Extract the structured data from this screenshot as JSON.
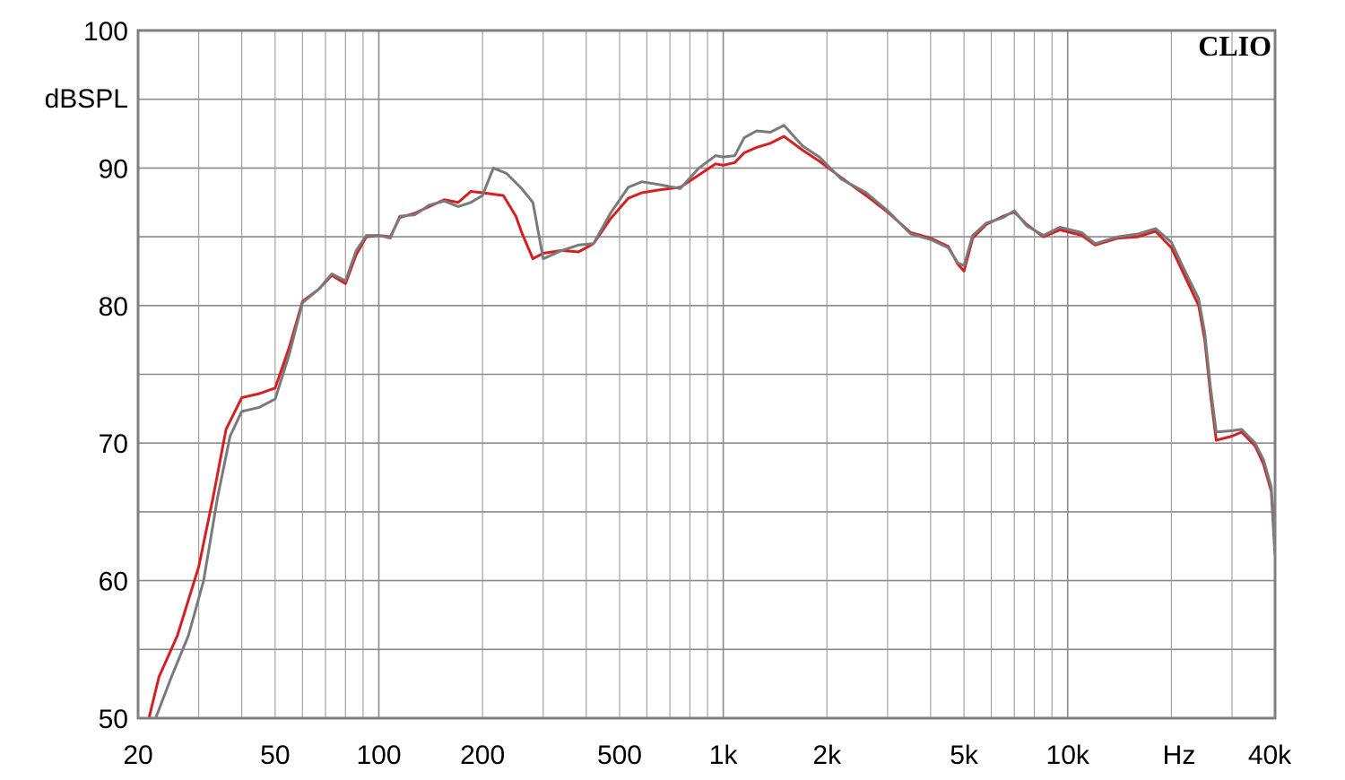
{
  "chart_data": {
    "type": "line",
    "title": "",
    "brand_label": "CLIO",
    "xlabel": "Hz",
    "ylabel": "dBSPL",
    "x_scale": "log",
    "xlim": [
      20,
      40000
    ],
    "ylim": [
      50,
      100
    ],
    "grid": true,
    "x_tick_labels": [
      {
        "value": 20,
        "label": "20"
      },
      {
        "value": 50,
        "label": "50"
      },
      {
        "value": 100,
        "label": "100"
      },
      {
        "value": 200,
        "label": "200"
      },
      {
        "value": 500,
        "label": "500"
      },
      {
        "value": 1000,
        "label": "1k"
      },
      {
        "value": 2000,
        "label": "2k"
      },
      {
        "value": 5000,
        "label": "5k"
      },
      {
        "value": 10000,
        "label": "10k"
      },
      {
        "value": 40000,
        "label": "40k"
      }
    ],
    "y_tick_labels": [
      {
        "value": 50,
        "label": "50"
      },
      {
        "value": 60,
        "label": "60"
      },
      {
        "value": 70,
        "label": "70"
      },
      {
        "value": 80,
        "label": "80"
      },
      {
        "value": 90,
        "label": "90"
      },
      {
        "value": 100,
        "label": "100"
      }
    ],
    "series": [
      {
        "color": "#d42020",
        "points": [
          [
            21.5,
            50
          ],
          [
            23,
            53
          ],
          [
            26,
            56
          ],
          [
            30,
            61
          ],
          [
            33,
            66
          ],
          [
            36,
            71
          ],
          [
            40,
            73.3
          ],
          [
            45,
            73.6
          ],
          [
            50,
            74
          ],
          [
            55,
            77
          ],
          [
            60,
            80.3
          ],
          [
            67,
            81.2
          ],
          [
            73,
            82.2
          ],
          [
            80,
            81.6
          ],
          [
            86,
            83.7
          ],
          [
            92,
            85
          ],
          [
            100,
            85.1
          ],
          [
            108,
            85
          ],
          [
            115,
            86.4
          ],
          [
            127,
            86.7
          ],
          [
            140,
            87.2
          ],
          [
            155,
            87.7
          ],
          [
            170,
            87.5
          ],
          [
            185,
            88.3
          ],
          [
            200,
            88.2
          ],
          [
            230,
            88
          ],
          [
            250,
            86.5
          ],
          [
            260,
            85.3
          ],
          [
            280,
            83.4
          ],
          [
            300,
            83.8
          ],
          [
            340,
            84
          ],
          [
            380,
            83.9
          ],
          [
            420,
            84.5
          ],
          [
            470,
            86.3
          ],
          [
            530,
            87.8
          ],
          [
            580,
            88.2
          ],
          [
            650,
            88.4
          ],
          [
            750,
            88.6
          ],
          [
            850,
            89.5
          ],
          [
            950,
            90.3
          ],
          [
            1000,
            90.2
          ],
          [
            1080,
            90.4
          ],
          [
            1150,
            91.1
          ],
          [
            1250,
            91.5
          ],
          [
            1370,
            91.8
          ],
          [
            1500,
            92.3
          ],
          [
            1700,
            91.3
          ],
          [
            1900,
            90.5
          ],
          [
            2200,
            89.3
          ],
          [
            2600,
            88
          ],
          [
            3000,
            86.8
          ],
          [
            3500,
            85.3
          ],
          [
            4000,
            84.9
          ],
          [
            4500,
            84.3
          ],
          [
            4800,
            83
          ],
          [
            5000,
            82.5
          ],
          [
            5300,
            84.9
          ],
          [
            5800,
            85.9
          ],
          [
            6500,
            86.5
          ],
          [
            7000,
            86.8
          ],
          [
            7600,
            85.9
          ],
          [
            8500,
            85
          ],
          [
            9500,
            85.5
          ],
          [
            11000,
            85.1
          ],
          [
            12000,
            84.4
          ],
          [
            14000,
            84.9
          ],
          [
            16000,
            85
          ],
          [
            18000,
            85.4
          ],
          [
            20000,
            84.2
          ],
          [
            22000,
            82
          ],
          [
            24000,
            80
          ],
          [
            25000,
            77.5
          ],
          [
            26000,
            73.5
          ],
          [
            27000,
            70.2
          ],
          [
            30000,
            70.5
          ],
          [
            32000,
            70.8
          ],
          [
            35000,
            69.8
          ],
          [
            37000,
            68.5
          ],
          [
            39000,
            66.5
          ],
          [
            40000,
            61.8
          ]
        ]
      },
      {
        "color": "#7a7a7a",
        "points": [
          [
            22.5,
            50
          ],
          [
            25,
            53
          ],
          [
            28,
            56
          ],
          [
            31,
            60
          ],
          [
            34,
            66
          ],
          [
            37,
            70.5
          ],
          [
            40,
            72.3
          ],
          [
            45,
            72.6
          ],
          [
            50,
            73.2
          ],
          [
            55,
            76.5
          ],
          [
            60,
            80.2
          ],
          [
            67,
            81.2
          ],
          [
            73,
            82.3
          ],
          [
            80,
            81.8
          ],
          [
            86,
            84
          ],
          [
            92,
            85.1
          ],
          [
            100,
            85.1
          ],
          [
            108,
            84.9
          ],
          [
            115,
            86.5
          ],
          [
            127,
            86.6
          ],
          [
            140,
            87.3
          ],
          [
            155,
            87.6
          ],
          [
            170,
            87.2
          ],
          [
            185,
            87.5
          ],
          [
            200,
            88
          ],
          [
            215,
            90
          ],
          [
            235,
            89.6
          ],
          [
            260,
            88.5
          ],
          [
            280,
            87.5
          ],
          [
            300,
            83.4
          ],
          [
            340,
            84
          ],
          [
            380,
            84.4
          ],
          [
            420,
            84.5
          ],
          [
            470,
            86.7
          ],
          [
            530,
            88.6
          ],
          [
            580,
            89
          ],
          [
            650,
            88.8
          ],
          [
            750,
            88.5
          ],
          [
            850,
            90
          ],
          [
            950,
            90.9
          ],
          [
            1000,
            90.8
          ],
          [
            1080,
            90.9
          ],
          [
            1150,
            92.2
          ],
          [
            1250,
            92.7
          ],
          [
            1370,
            92.6
          ],
          [
            1500,
            93.1
          ],
          [
            1700,
            91.6
          ],
          [
            1900,
            90.8
          ],
          [
            2200,
            89.2
          ],
          [
            2600,
            88.2
          ],
          [
            3000,
            86.9
          ],
          [
            3500,
            85.2
          ],
          [
            4000,
            84.8
          ],
          [
            4500,
            84.2
          ],
          [
            4800,
            83.1
          ],
          [
            5000,
            82.9
          ],
          [
            5300,
            85.1
          ],
          [
            5800,
            86
          ],
          [
            6500,
            86.4
          ],
          [
            7000,
            86.9
          ],
          [
            7600,
            85.8
          ],
          [
            8500,
            85.1
          ],
          [
            9500,
            85.7
          ],
          [
            11000,
            85.3
          ],
          [
            12000,
            84.5
          ],
          [
            14000,
            85
          ],
          [
            16000,
            85.2
          ],
          [
            18000,
            85.6
          ],
          [
            20000,
            84.6
          ],
          [
            22000,
            82.4
          ],
          [
            24000,
            80.5
          ],
          [
            25000,
            78
          ],
          [
            26000,
            74
          ],
          [
            27000,
            70.8
          ],
          [
            30000,
            70.9
          ],
          [
            32000,
            71
          ],
          [
            35000,
            70
          ],
          [
            37000,
            68.8
          ],
          [
            39000,
            66.8
          ],
          [
            40000,
            61.8
          ]
        ]
      }
    ]
  }
}
